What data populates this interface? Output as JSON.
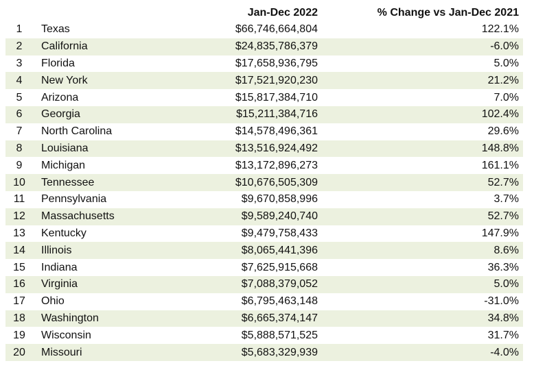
{
  "table": {
    "headers": {
      "rank": "",
      "state": "",
      "value": "Jan-Dec 2022",
      "change": "% Change vs Jan-Dec 2021"
    },
    "rows": [
      {
        "rank": "1",
        "state": "Texas",
        "value": "$66,746,664,804",
        "change": "122.1%"
      },
      {
        "rank": "2",
        "state": "California",
        "value": "$24,835,786,379",
        "change": "-6.0%"
      },
      {
        "rank": "3",
        "state": "Florida",
        "value": "$17,658,936,795",
        "change": "5.0%"
      },
      {
        "rank": "4",
        "state": "New York",
        "value": "$17,521,920,230",
        "change": "21.2%"
      },
      {
        "rank": "5",
        "state": "Arizona",
        "value": "$15,817,384,710",
        "change": "7.0%"
      },
      {
        "rank": "6",
        "state": "Georgia",
        "value": "$15,211,384,716",
        "change": "102.4%"
      },
      {
        "rank": "7",
        "state": "North Carolina",
        "value": "$14,578,496,361",
        "change": "29.6%"
      },
      {
        "rank": "8",
        "state": "Louisiana",
        "value": "$13,516,924,492",
        "change": "148.8%"
      },
      {
        "rank": "9",
        "state": "Michigan",
        "value": "$13,172,896,273",
        "change": "161.1%"
      },
      {
        "rank": "10",
        "state": "Tennessee",
        "value": "$10,676,505,309",
        "change": "52.7%"
      },
      {
        "rank": "11",
        "state": "Pennsylvania",
        "value": "$9,670,858,996",
        "change": "3.7%"
      },
      {
        "rank": "12",
        "state": "Massachusetts",
        "value": "$9,589,240,740",
        "change": "52.7%"
      },
      {
        "rank": "13",
        "state": "Kentucky",
        "value": "$9,479,758,433",
        "change": "147.9%"
      },
      {
        "rank": "14",
        "state": "Illinois",
        "value": "$8,065,441,396",
        "change": "8.6%"
      },
      {
        "rank": "15",
        "state": "Indiana",
        "value": "$7,625,915,668",
        "change": "36.3%"
      },
      {
        "rank": "16",
        "state": "Virginia",
        "value": "$7,088,379,052",
        "change": "5.0%"
      },
      {
        "rank": "17",
        "state": "Ohio",
        "value": "$6,795,463,148",
        "change": "-31.0%"
      },
      {
        "rank": "18",
        "state": "Washington",
        "value": "$6,665,374,147",
        "change": "34.8%"
      },
      {
        "rank": "19",
        "state": "Wisconsin",
        "value": "$5,888,571,525",
        "change": "31.7%"
      },
      {
        "rank": "20",
        "state": "Missouri",
        "value": "$5,683,329,939",
        "change": "-4.0%"
      }
    ],
    "shaded_row_color": "#ecf1df"
  }
}
